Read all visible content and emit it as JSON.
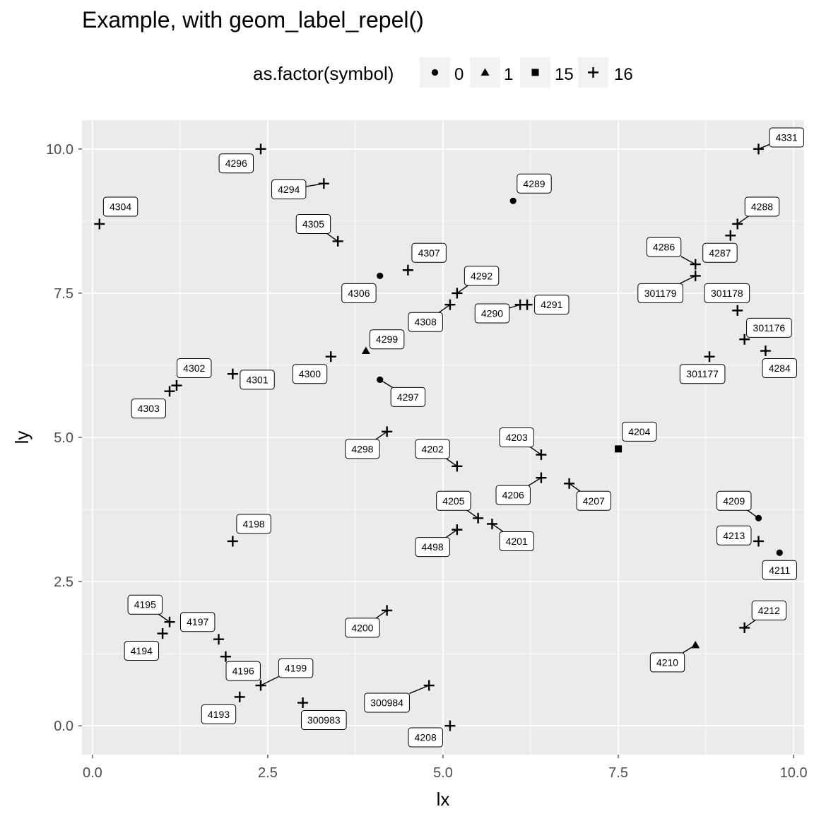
{
  "chart_data": {
    "type": "scatter",
    "title": "Example, with geom_label_repel()",
    "xlabel": "lx",
    "ylabel": "ly",
    "xlim": [
      -0.15,
      10.15
    ],
    "ylim": [
      -0.5,
      10.5
    ],
    "x_ticks": [
      0.0,
      2.5,
      5.0,
      7.5,
      10.0
    ],
    "x_tick_labels": [
      "0.0",
      "2.5",
      "5.0",
      "7.5",
      "10.0"
    ],
    "y_ticks": [
      0.0,
      2.5,
      5.0,
      7.5,
      10.0
    ],
    "y_tick_labels": [
      "0.0",
      "2.5",
      "5.0",
      "7.5",
      "10.0"
    ],
    "grid": true,
    "legend": {
      "title": "as.factor(symbol)",
      "position": "top",
      "entries": [
        {
          "label": "0",
          "shape": "circle"
        },
        {
          "label": "1",
          "shape": "triangle"
        },
        {
          "label": "15",
          "shape": "square"
        },
        {
          "label": "16",
          "shape": "plus"
        }
      ]
    },
    "points": [
      {
        "label": "4304",
        "x": 0.1,
        "y": 8.7,
        "symbol": "16",
        "lx": 0.4,
        "ly": 9.0
      },
      {
        "label": "4296",
        "x": 2.4,
        "y": 10.0,
        "symbol": "16",
        "lx": 2.05,
        "ly": 9.75
      },
      {
        "label": "4294",
        "x": 3.3,
        "y": 9.4,
        "symbol": "16",
        "lx": 2.8,
        "ly": 9.3
      },
      {
        "label": "4305",
        "x": 3.5,
        "y": 8.4,
        "symbol": "16",
        "lx": 3.15,
        "ly": 8.7
      },
      {
        "label": "4289",
        "x": 6.0,
        "y": 9.1,
        "symbol": "0",
        "lx": 6.3,
        "ly": 9.4
      },
      {
        "label": "4307",
        "x": 4.5,
        "y": 7.9,
        "symbol": "16",
        "lx": 4.8,
        "ly": 8.2
      },
      {
        "label": "4306",
        "x": 4.1,
        "y": 7.8,
        "symbol": "0",
        "lx": 3.8,
        "ly": 7.5
      },
      {
        "label": "4292",
        "x": 5.2,
        "y": 7.5,
        "symbol": "16",
        "lx": 5.55,
        "ly": 7.8
      },
      {
        "label": "4308",
        "x": 5.1,
        "y": 7.3,
        "symbol": "16",
        "lx": 4.75,
        "ly": 7.0
      },
      {
        "label": "4290",
        "x": 6.1,
        "y": 7.3,
        "symbol": "16",
        "lx": 5.7,
        "ly": 7.15
      },
      {
        "label": "4291",
        "x": 6.2,
        "y": 7.3,
        "symbol": "16",
        "lx": 6.55,
        "ly": 7.3
      },
      {
        "label": "4299",
        "x": 3.9,
        "y": 6.5,
        "symbol": "1",
        "lx": 4.2,
        "ly": 6.7
      },
      {
        "label": "4300",
        "x": 3.4,
        "y": 6.4,
        "symbol": "16",
        "lx": 3.1,
        "ly": 6.1
      },
      {
        "label": "4297",
        "x": 4.1,
        "y": 6.0,
        "symbol": "0",
        "lx": 4.5,
        "ly": 5.7
      },
      {
        "label": "4301",
        "x": 2.0,
        "y": 6.1,
        "symbol": "16",
        "lx": 2.35,
        "ly": 6.0
      },
      {
        "label": "4302",
        "x": 1.2,
        "y": 5.9,
        "symbol": "16",
        "lx": 1.45,
        "ly": 6.2
      },
      {
        "label": "4303",
        "x": 1.1,
        "y": 5.8,
        "symbol": "16",
        "lx": 0.8,
        "ly": 5.5
      },
      {
        "label": "4298",
        "x": 4.2,
        "y": 5.1,
        "symbol": "16",
        "lx": 3.85,
        "ly": 4.8
      },
      {
        "label": "4202",
        "x": 5.2,
        "y": 4.5,
        "symbol": "16",
        "lx": 4.85,
        "ly": 4.8
      },
      {
        "label": "4203",
        "x": 6.4,
        "y": 4.7,
        "symbol": "16",
        "lx": 6.05,
        "ly": 5.0
      },
      {
        "label": "4204",
        "x": 7.5,
        "y": 4.8,
        "symbol": "15",
        "lx": 7.8,
        "ly": 5.1
      },
      {
        "label": "4206",
        "x": 6.4,
        "y": 4.3,
        "symbol": "16",
        "lx": 6.0,
        "ly": 4.0
      },
      {
        "label": "4207",
        "x": 6.8,
        "y": 4.2,
        "symbol": "16",
        "lx": 7.15,
        "ly": 3.9
      },
      {
        "label": "4205",
        "x": 5.5,
        "y": 3.6,
        "symbol": "16",
        "lx": 5.15,
        "ly": 3.9
      },
      {
        "label": "4201",
        "x": 5.7,
        "y": 3.5,
        "symbol": "16",
        "lx": 6.05,
        "ly": 3.2
      },
      {
        "label": "4498",
        "x": 5.2,
        "y": 3.4,
        "symbol": "16",
        "lx": 4.85,
        "ly": 3.1
      },
      {
        "label": "4198",
        "x": 2.0,
        "y": 3.2,
        "symbol": "16",
        "lx": 2.3,
        "ly": 3.5
      },
      {
        "label": "4209",
        "x": 9.5,
        "y": 3.6,
        "symbol": "0",
        "lx": 9.15,
        "ly": 3.9
      },
      {
        "label": "4213",
        "x": 9.5,
        "y": 3.2,
        "symbol": "16",
        "lx": 9.15,
        "ly": 3.3
      },
      {
        "label": "4211",
        "x": 9.8,
        "y": 3.0,
        "symbol": "0",
        "lx": 9.8,
        "ly": 2.7
      },
      {
        "label": "4212",
        "x": 9.3,
        "y": 1.7,
        "symbol": "16",
        "lx": 9.65,
        "ly": 2.0
      },
      {
        "label": "4210",
        "x": 8.6,
        "y": 1.4,
        "symbol": "1",
        "lx": 8.2,
        "ly": 1.1
      },
      {
        "label": "4200",
        "x": 4.2,
        "y": 2.0,
        "symbol": "16",
        "lx": 3.85,
        "ly": 1.7
      },
      {
        "label": "4195",
        "x": 1.1,
        "y": 1.8,
        "symbol": "16",
        "lx": 0.75,
        "ly": 2.1
      },
      {
        "label": "4197",
        "x": 1.8,
        "y": 1.5,
        "symbol": "16",
        "lx": 1.5,
        "ly": 1.8
      },
      {
        "label": "4194",
        "x": 1.0,
        "y": 1.6,
        "symbol": "16",
        "lx": 0.7,
        "ly": 1.3
      },
      {
        "label": "4196",
        "x": 1.9,
        "y": 1.2,
        "symbol": "16",
        "lx": 2.15,
        "ly": 0.95
      },
      {
        "label": "4199",
        "x": 2.4,
        "y": 0.7,
        "symbol": "16",
        "lx": 2.9,
        "ly": 1.0
      },
      {
        "label": "4193",
        "x": 2.1,
        "y": 0.5,
        "symbol": "16",
        "lx": 1.8,
        "ly": 0.2
      },
      {
        "label": "300983",
        "x": 3.0,
        "y": 0.4,
        "symbol": "16",
        "lx": 3.3,
        "ly": 0.1
      },
      {
        "label": "300984",
        "x": 4.8,
        "y": 0.7,
        "symbol": "16",
        "lx": 4.2,
        "ly": 0.4
      },
      {
        "label": "4208",
        "x": 5.1,
        "y": 0.0,
        "symbol": "16",
        "lx": 4.75,
        "ly": -0.2
      },
      {
        "label": "4286",
        "x": 8.6,
        "y": 8.0,
        "symbol": "16",
        "lx": 8.15,
        "ly": 8.3
      },
      {
        "label": "4287",
        "x": 9.1,
        "y": 8.5,
        "symbol": "16",
        "lx": 8.95,
        "ly": 8.2
      },
      {
        "label": "4288",
        "x": 9.2,
        "y": 8.7,
        "symbol": "16",
        "lx": 9.55,
        "ly": 9.0
      },
      {
        "label": "4331",
        "x": 9.5,
        "y": 10.0,
        "symbol": "16",
        "lx": 9.9,
        "ly": 10.2
      },
      {
        "label": "301179",
        "x": 8.6,
        "y": 7.8,
        "symbol": "16",
        "lx": 8.1,
        "ly": 7.5
      },
      {
        "label": "301178",
        "x": 9.2,
        "y": 7.2,
        "symbol": "16",
        "lx": 9.05,
        "ly": 7.5
      },
      {
        "label": "301176",
        "x": 9.3,
        "y": 6.7,
        "symbol": "16",
        "lx": 9.65,
        "ly": 6.9
      },
      {
        "label": "301177",
        "x": 8.8,
        "y": 6.4,
        "symbol": "16",
        "lx": 8.7,
        "ly": 6.1
      },
      {
        "label": "4284",
        "x": 9.6,
        "y": 6.5,
        "symbol": "16",
        "lx": 9.8,
        "ly": 6.2
      }
    ]
  },
  "colors": {
    "panel": "#ebebeb",
    "grid_major": "#ffffff",
    "text": "#000000",
    "axis_text": "#4d4d4d"
  }
}
